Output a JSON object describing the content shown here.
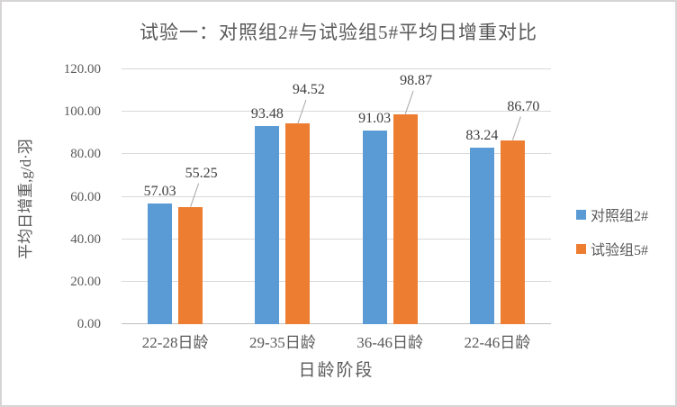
{
  "chart_data": {
    "type": "bar",
    "title": "试验一：对照组2#与试验组5#平均日增重对比",
    "categories": [
      "22-28日龄",
      "29-35日龄",
      "36-46日龄",
      "22-46日龄"
    ],
    "series": [
      {
        "name": "对照组2#",
        "color": "#5B9BD5",
        "values": [
          57.03,
          93.48,
          91.03,
          83.24
        ]
      },
      {
        "name": "试验组5#",
        "color": "#ED7D31",
        "values": [
          55.25,
          94.52,
          98.87,
          86.7
        ]
      }
    ],
    "xlabel": "日龄阶段",
    "ylabel": "平均日增重,g/d·羽",
    "ylim": [
      0,
      120
    ],
    "ytick_step": 20,
    "ytick_labels": [
      "0.00",
      "20.00",
      "40.00",
      "60.00",
      "80.00",
      "100.00",
      "120.00"
    ],
    "grid": true,
    "data_labels": true,
    "legend_position": "right",
    "colors": {
      "text": "#595959",
      "data_label": "#404040",
      "gridline": "#D9D9D9",
      "axis_line": "#BFBFBF",
      "leader_line": "#A6A6A6",
      "border": "#D6D4D4",
      "background": "#FFFFFF"
    }
  }
}
